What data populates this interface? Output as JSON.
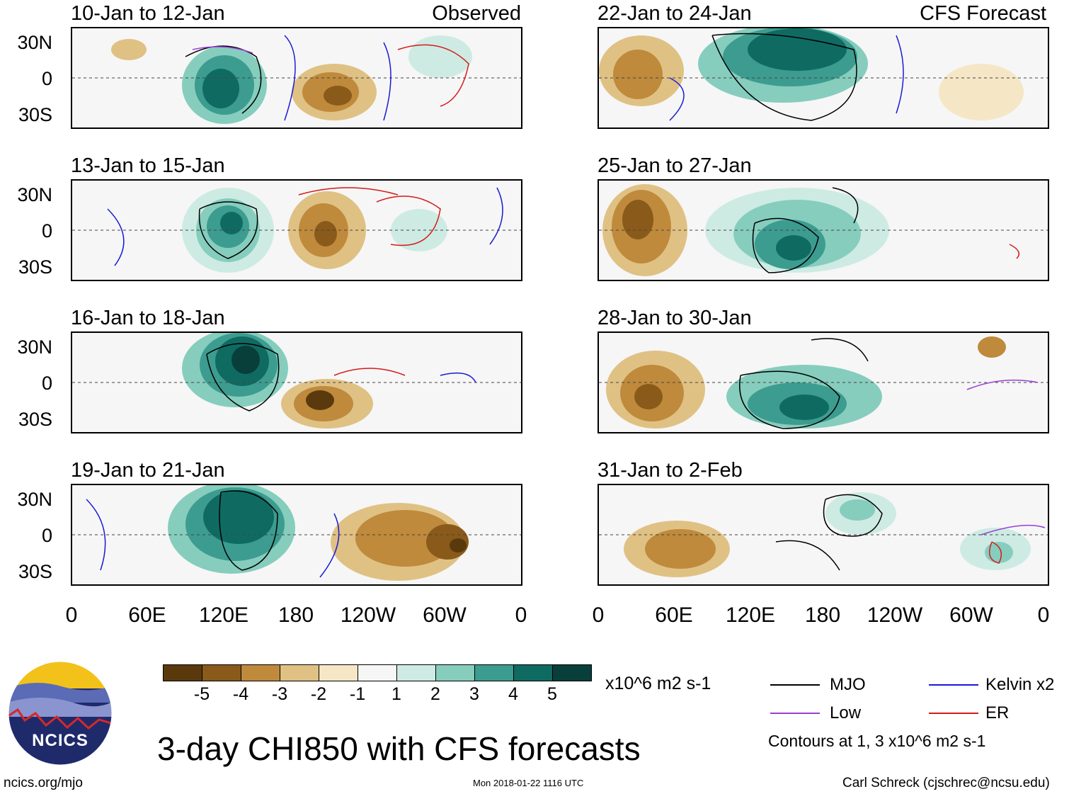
{
  "header": {
    "observed_label": "Observed",
    "forecast_label": "CFS Forecast"
  },
  "panels": [
    {
      "title": "10-Jan to 12-Jan",
      "kind": "observed"
    },
    {
      "title": "13-Jan to 15-Jan",
      "kind": "observed"
    },
    {
      "title": "16-Jan to 18-Jan",
      "kind": "observed"
    },
    {
      "title": "19-Jan to 21-Jan",
      "kind": "observed"
    },
    {
      "title": "22-Jan to 24-Jan",
      "kind": "forecast"
    },
    {
      "title": "25-Jan to 27-Jan",
      "kind": "forecast"
    },
    {
      "title": "28-Jan to 30-Jan",
      "kind": "forecast"
    },
    {
      "title": "31-Jan to 2-Feb",
      "kind": "forecast"
    }
  ],
  "lat_labels": [
    "30N",
    "0",
    "30S"
  ],
  "lon_labels": [
    "0",
    "60E",
    "120E",
    "180",
    "120W",
    "60W",
    "0"
  ],
  "colorbar": {
    "labels": [
      "-5",
      "-4",
      "-3",
      "-2",
      "-1",
      "1",
      "2",
      "3",
      "4",
      "5"
    ],
    "colors": [
      "#5a3a0c",
      "#8a5a1a",
      "#bf8a3c",
      "#e0c184",
      "#f5e6c6",
      "#f6f6f6",
      "#cdebe3",
      "#86cdbe",
      "#3c9c8f",
      "#0f6b62",
      "#083f3a"
    ],
    "units": "x10^6 m2 s-1"
  },
  "legend": {
    "mjo": "MJO",
    "kelvin": "Kelvin x2",
    "low": "Low",
    "er": "ER",
    "contours_note": "Contours at 1, 3 x10^6 m2 s-1",
    "colors": {
      "mjo": "#000000",
      "kelvin": "#1a1ad6",
      "low": "#9a3ed6",
      "er": "#d61a1a"
    }
  },
  "footer": {
    "main_title": "3-day CHI850 with CFS forecasts",
    "website": "ncics.org/mjo",
    "timestamp": "Mon 2018-01-22 1116 UTC",
    "credit": "Carl Schreck (cjschrec@ncsu.edu)",
    "logo_text": "NCICS"
  }
}
